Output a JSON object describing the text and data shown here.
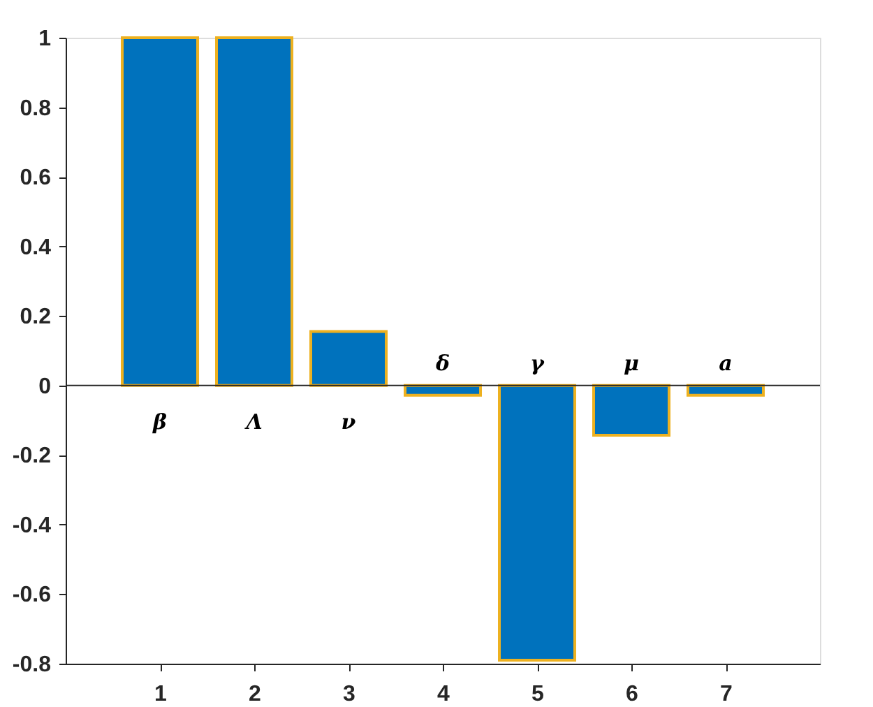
{
  "chart_data": {
    "type": "bar",
    "x": [
      1,
      2,
      3,
      4,
      5,
      6,
      7
    ],
    "series": [
      {
        "color": "#0072bd",
        "values": [
          1,
          1,
          0.155,
          -0.028,
          -0.79,
          -0.143,
          -0.028
        ]
      }
    ],
    "xlim": [
      0,
      8
    ],
    "xticks": [
      1,
      2,
      3,
      4,
      5,
      6,
      7
    ],
    "ylim": [
      -0.8,
      1
    ],
    "yticks": [
      -0.8,
      -0.6,
      -0.4,
      -0.2,
      0,
      0.2,
      0.4,
      0.6,
      0.8,
      1
    ],
    "ref_lines": [
      {
        "axis": "y",
        "value": 0,
        "color": "#262626"
      }
    ],
    "annotations": [
      "β",
      "Λ",
      "ν",
      "δ",
      "γ",
      "μ",
      "a"
    ],
    "grid": false
  }
}
